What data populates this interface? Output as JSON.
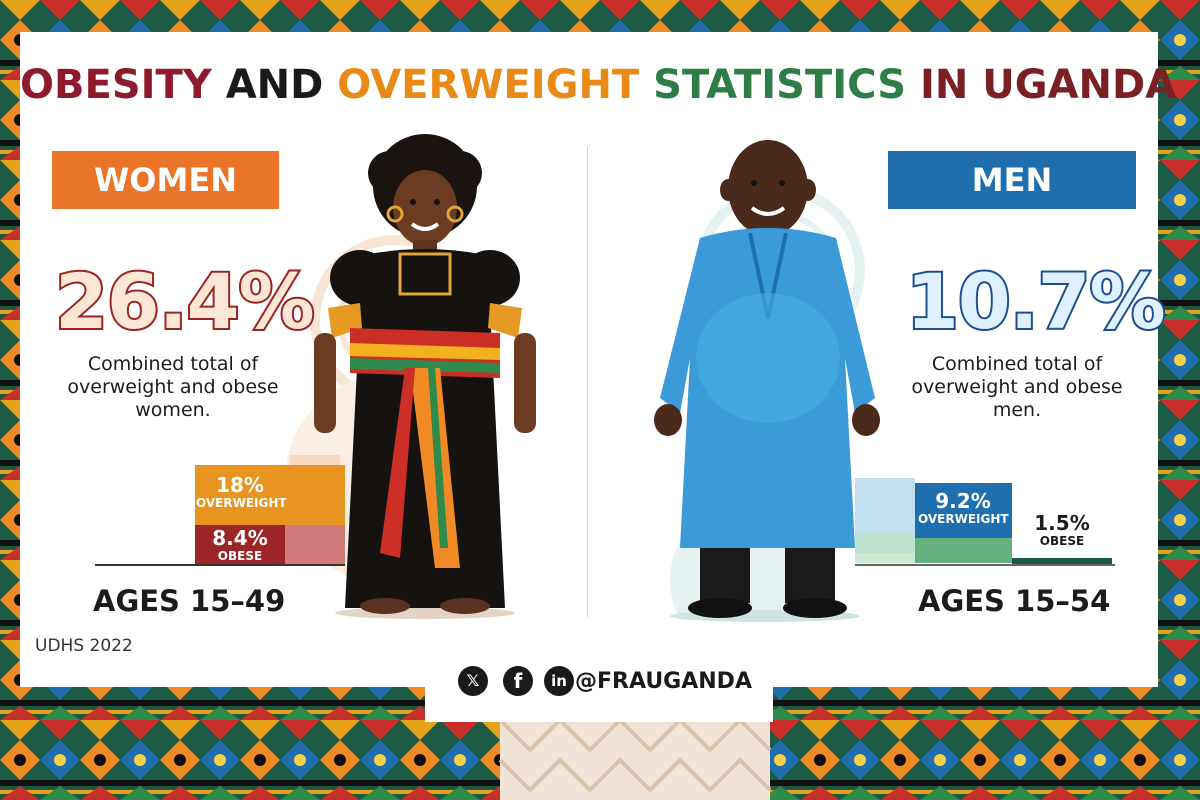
{
  "title": {
    "part1": "OBESITY",
    "part2": "AND",
    "part3": "OVERWEIGHT",
    "part4": "STATISTICS",
    "part5": "IN UGANDA"
  },
  "women": {
    "heading": "WOMEN",
    "total": "26.4%",
    "description": "Combined total of overweight and obese women.",
    "overweight_value": "18%",
    "overweight_label": "OVERWEIGHT",
    "obese_value": "8.4%",
    "obese_label": "OBESE",
    "ages": "AGES 15–49"
  },
  "men": {
    "heading": "MEN",
    "total": "10.7%",
    "description": "Combined total of overweight and obese men.",
    "overweight_value": "9.2%",
    "overweight_label": "OVERWEIGHT",
    "obese_value": "1.5%",
    "obese_label": "OBESE",
    "ages": "AGES 15–54"
  },
  "source": "UDHS 2022",
  "social": {
    "handle": "@FRAUGANDA",
    "icons": [
      "x-icon",
      "facebook-icon",
      "linkedin-icon"
    ]
  },
  "colors": {
    "women_accent": "#ea7427",
    "men_accent": "#1f6fae",
    "overweight_women": "#e89421",
    "obese_women": "#9c2527",
    "overweight_men": "#1f6fae",
    "title_green": "#2f7d46"
  }
}
